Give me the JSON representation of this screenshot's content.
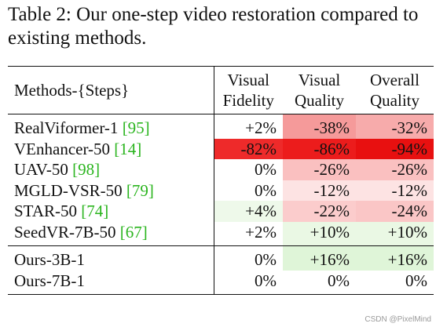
{
  "caption": "Table 2: Our one-step video restoration compared to existing methods.",
  "headers": {
    "method": "Methods-{Steps}",
    "visual_fidelity_line1": "Visual",
    "visual_fidelity_line2": "Fidelity",
    "visual_quality_line1": "Visual",
    "visual_quality_line2": "Quality",
    "overall_quality_line1": "Overall",
    "overall_quality_line2": "Quality"
  },
  "rows": [
    {
      "name": "RealViformer-1",
      "ref": "[95]",
      "vf": "+2%",
      "vq": "-38%",
      "oq": "-32%"
    },
    {
      "name": "VEnhancer-50",
      "ref": "[14]",
      "vf": "-82%",
      "vq": "-86%",
      "oq": "-94%"
    },
    {
      "name": "UAV-50",
      "ref": "[98]",
      "vf": "0%",
      "vq": "-26%",
      "oq": "-26%"
    },
    {
      "name": "MGLD-VSR-50",
      "ref": "[79]",
      "vf": "0%",
      "vq": "-12%",
      "oq": "-12%"
    },
    {
      "name": "STAR-50",
      "ref": "[74]",
      "vf": "+4%",
      "vq": "-22%",
      "oq": "-24%"
    },
    {
      "name": "SeedVR-7B-50",
      "ref": "[67]",
      "vf": "+2%",
      "vq": "+10%",
      "oq": "+10%"
    }
  ],
  "ours": [
    {
      "name": "Ours-3B-1",
      "vf": "0%",
      "vq": "+16%",
      "oq": "+16%"
    },
    {
      "name": "Ours-7B-1",
      "vf": "0%",
      "vq": "0%",
      "oq": "0%"
    }
  ],
  "colors": {
    "reference_link": "#2bb51f",
    "neg_strong": "#ec1c1c",
    "neg_mid": "#f59a9a",
    "neg_light": "#fbd0d0",
    "neg_faint": "#fde6e6",
    "pos_light": "#dff5d8",
    "pos_faint": "#eef9ea"
  },
  "watermark": "CSDN @PixelMind"
}
